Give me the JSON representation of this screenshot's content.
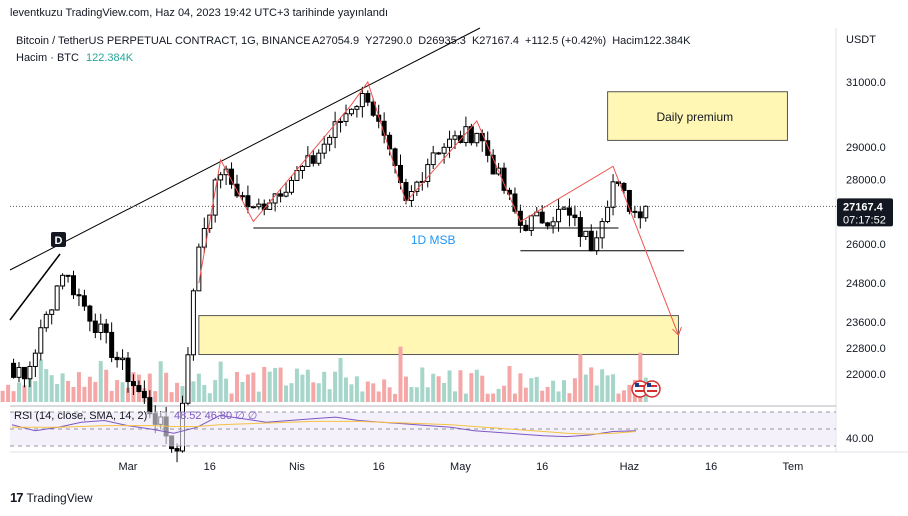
{
  "header": {
    "publish_line": "leventkuzu TradingView.com, Haz 04, 2023 19:42 UTC+3 tarihinde yayınlandı"
  },
  "footer": {
    "brand": "TradingView"
  },
  "chart_data": {
    "type": "candlestick",
    "title": "Bitcoin / TetherUS PERPETUAL CONTRACT, 1G, BINANCE",
    "ohlc_line": {
      "open": "A27054.9",
      "high": "Y27290.0",
      "low": "D26935.3",
      "close": "K27167.4",
      "change": "+112.5 (+0.42%)",
      "volume": "Hacim122.384K"
    },
    "volume_legend": {
      "label": "Hacim · BTC",
      "value": "122.384K"
    },
    "currency": "USDT",
    "price_axis": {
      "ticks": [
        31000,
        29000,
        28000,
        26000,
        24800,
        23600,
        22800,
        22000
      ],
      "tick_labels": [
        "31000.0",
        "29000.0",
        "28000.0",
        "26000.0",
        "24800.0",
        "23600.0",
        "22800.0",
        "22000.0"
      ],
      "range": [
        21600,
        32000
      ]
    },
    "time_axis": {
      "labels": [
        "Mar",
        "16",
        "Nis",
        "16",
        "May",
        "16",
        "Haz",
        "16",
        "Tem"
      ]
    },
    "last_price": {
      "value": "27167.4",
      "countdown": "07:17:52",
      "price": 27167.4
    },
    "annotations": {
      "daily_premium": "Daily premium",
      "msb": "1D MSB",
      "marker": "D",
      "supply_zone": [
        29200,
        30700
      ],
      "demand_zone": [
        22600,
        23800
      ],
      "msb_level_1": 26500,
      "msb_level_2": 25800
    },
    "pivots": [
      {
        "d": "Feb 02",
        "p": 23200
      },
      {
        "d": "Feb 10",
        "p": 21800
      },
      {
        "d": "Feb 17",
        "p": 25200
      },
      {
        "d": "Feb 25",
        "p": 23000
      },
      {
        "d": "Mar 10",
        "p": 19600
      },
      {
        "d": "Mar 14",
        "p": 26000
      },
      {
        "d": "Mar 18",
        "p": 28300
      },
      {
        "d": "Mar 24",
        "p": 27000
      },
      {
        "d": "Apr 04",
        "p": 28600
      },
      {
        "d": "Apr 11",
        "p": 30300
      },
      {
        "d": "Apr 14",
        "p": 30600
      },
      {
        "d": "Apr 21",
        "p": 27200
      },
      {
        "d": "Apr 26",
        "p": 28900
      },
      {
        "d": "May 04",
        "p": 29500
      },
      {
        "d": "May 12",
        "p": 26600
      },
      {
        "d": "May 20",
        "p": 27000
      },
      {
        "d": "May 25",
        "p": 26000
      },
      {
        "d": "May 29",
        "p": 27900
      },
      {
        "d": "Jun 02",
        "p": 27000
      },
      {
        "d": "Jun 04",
        "p": 27167
      }
    ],
    "rsi": {
      "label": "RSI (14, close, SMA, 14, 2)",
      "values_text": "48.52  46.80  ∅  ∅",
      "level": "40.00",
      "values": [
        55,
        48,
        52,
        58,
        60,
        54,
        50,
        45,
        52,
        66,
        62,
        58,
        60,
        62,
        64,
        60,
        58,
        56,
        54,
        52,
        48,
        46,
        44,
        42,
        41,
        43,
        47,
        48
      ],
      "sma": [
        52,
        52,
        52,
        53,
        54,
        54,
        54,
        53,
        53,
        55,
        56,
        57,
        58,
        59,
        59,
        59,
        58,
        57,
        56,
        55,
        53,
        51,
        49,
        47,
        45,
        44,
        45,
        47
      ]
    },
    "colors": {
      "up": "#26a69a",
      "down": "#ef5350",
      "volume_up": "#a5d6c9",
      "volume_down": "#f4a7a6",
      "zone_fill": "#fff7b3",
      "zone_stroke": "#555555",
      "rsi_line": "#7e57c2",
      "rsi_sma": "#f5c242",
      "msb_text": "#2196f3",
      "trendline": "#000000",
      "path_line": "#ef5350"
    }
  }
}
